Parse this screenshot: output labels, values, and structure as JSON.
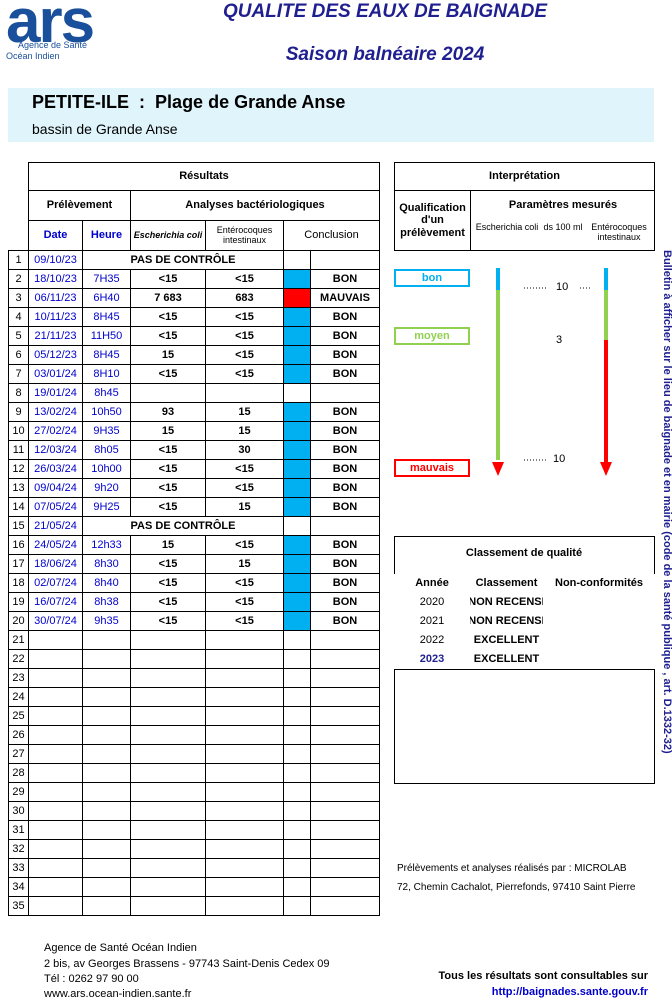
{
  "header": {
    "logo": "ars",
    "agency_line1": "Agence de Santé",
    "agency_line2": "Océan Indien",
    "title": "QUALITE DES EAUX DE BAIGNADE",
    "subtitle": "Saison balnéaire 2024"
  },
  "site": {
    "commune": "PETITE-ILE",
    "separator": ":",
    "beach": "Plage de Grande Anse",
    "basin": "bassin de Grande Anse"
  },
  "results": {
    "title": "Résultats",
    "group_sampling": "Prélèvement",
    "group_analysis": "Analyses bactériologiques",
    "columns": [
      "Date",
      "Heure",
      "Escherichia coli",
      "Entérocoques intestinaux",
      "Conclusion"
    ],
    "rows": [
      {
        "no": "1",
        "date": "09/10/23",
        "note": "PAS DE CONTRÔLE"
      },
      {
        "no": "2",
        "date": "18/10/23",
        "time": "7H35",
        "ecoli": "<15",
        "entero": "<15",
        "color": "#00b0f0",
        "conclusion": "BON"
      },
      {
        "no": "3",
        "date": "06/11/23",
        "time": "6H40",
        "ecoli": "7 683",
        "entero": "683",
        "color": "#ff0000",
        "conclusion": "MAUVAIS"
      },
      {
        "no": "4",
        "date": "10/11/23",
        "time": "8H45",
        "ecoli": "<15",
        "entero": "<15",
        "color": "#00b0f0",
        "conclusion": "BON"
      },
      {
        "no": "5",
        "date": "21/11/23",
        "time": "11H50",
        "ecoli": "<15",
        "entero": "<15",
        "color": "#00b0f0",
        "conclusion": "BON"
      },
      {
        "no": "6",
        "date": "05/12/23",
        "time": "8H45",
        "ecoli": "15",
        "entero": "<15",
        "color": "#00b0f0",
        "conclusion": "BON"
      },
      {
        "no": "7",
        "date": "03/01/24",
        "time": "8H10",
        "ecoli": "<15",
        "entero": "<15",
        "color": "#00b0f0",
        "conclusion": "BON"
      },
      {
        "no": "8",
        "date": "19/01/24",
        "time": "8h45"
      },
      {
        "no": "9",
        "date": "13/02/24",
        "time": "10h50",
        "ecoli": "93",
        "entero": "15",
        "color": "#00b0f0",
        "conclusion": "BON"
      },
      {
        "no": "10",
        "date": "27/02/24",
        "time": "9H35",
        "ecoli": "15",
        "entero": "15",
        "color": "#00b0f0",
        "conclusion": "BON"
      },
      {
        "no": "11",
        "date": "12/03/24",
        "time": "8h05",
        "ecoli": "<15",
        "entero": "30",
        "color": "#00b0f0",
        "conclusion": "BON"
      },
      {
        "no": "12",
        "date": "26/03/24",
        "time": "10h00",
        "ecoli": "<15",
        "entero": "<15",
        "color": "#00b0f0",
        "conclusion": "BON"
      },
      {
        "no": "13",
        "date": "09/04/24",
        "time": "9h20",
        "ecoli": "<15",
        "entero": "<15",
        "color": "#00b0f0",
        "conclusion": "BON"
      },
      {
        "no": "14",
        "date": "07/05/24",
        "time": "9H25",
        "ecoli": "<15",
        "entero": "15",
        "color": "#00b0f0",
        "conclusion": "BON"
      },
      {
        "no": "15",
        "date": "21/05/24",
        "note": "PAS DE CONTRÔLE"
      },
      {
        "no": "16",
        "date": "24/05/24",
        "time": "12h33",
        "ecoli": "15",
        "entero": "<15",
        "color": "#00b0f0",
        "conclusion": "BON"
      },
      {
        "no": "17",
        "date": "18/06/24",
        "time": "8h30",
        "ecoli": "<15",
        "entero": "15",
        "color": "#00b0f0",
        "conclusion": "BON"
      },
      {
        "no": "18",
        "date": "02/07/24",
        "time": "8h40",
        "ecoli": "<15",
        "entero": "<15",
        "color": "#00b0f0",
        "conclusion": "BON"
      },
      {
        "no": "19",
        "date": "16/07/24",
        "time": "8h38",
        "ecoli": "<15",
        "entero": "<15",
        "color": "#00b0f0",
        "conclusion": "BON"
      },
      {
        "no": "20",
        "date": "30/07/24",
        "time": "9h35",
        "ecoli": "<15",
        "entero": "<15",
        "color": "#00b0f0",
        "conclusion": "BON"
      },
      {
        "no": "21"
      },
      {
        "no": "22"
      },
      {
        "no": "23"
      },
      {
        "no": "24"
      },
      {
        "no": "25"
      },
      {
        "no": "26"
      },
      {
        "no": "27"
      },
      {
        "no": "28"
      },
      {
        "no": "29"
      },
      {
        "no": "30"
      },
      {
        "no": "31"
      },
      {
        "no": "32"
      },
      {
        "no": "33"
      },
      {
        "no": "34"
      },
      {
        "no": "35"
      }
    ]
  },
  "interpretation": {
    "title": "Interprétation",
    "qualification": "Qualification d'un prélèvement",
    "parameters": "Paramètres mesurés",
    "param_ecoli": "Escherichia coli",
    "param_unit": "ds 100 ml",
    "param_entero": "Entérocoques intestinaux",
    "levels": [
      {
        "label": "bon",
        "color": "#00b0f0"
      },
      {
        "label": "moyen",
        "color": "#92d050"
      },
      {
        "label": "mauvais",
        "color": "#ff0000"
      }
    ],
    "thresholds": [
      "10",
      "3",
      "10"
    ]
  },
  "classification": {
    "title": "Classement de qualité",
    "columns": [
      "Année",
      "Classement",
      "Non-conformités"
    ],
    "rows": [
      {
        "year": "2020",
        "class": "NON RECENSI"
      },
      {
        "year": "2021",
        "class": "NON RECENSI"
      },
      {
        "year": "2022",
        "class": "EXCELLENT"
      },
      {
        "year": "2023",
        "class": "EXCELLENT"
      }
    ]
  },
  "laboratory": {
    "line1": "Prélèvements et analyses réalisés par : MICROLAB",
    "line2": "72, Chemin Cachalot, Pierrefonds, 97410 Saint Pierre"
  },
  "notice": "Bulletin à afficher sur le lieu de baignade et en mairie (code de la santé publique , art. D.1332-32)",
  "footer": {
    "agency": "Agence de Santé Océan Indien",
    "address": "2 bis, av Georges Brassens - 97743 Saint-Denis Cedex 09",
    "phone": "Tél : 0262 97 90 00",
    "website": "www.ars.ocean-indien.sante.fr",
    "results_note": "Tous les résultats sont consultables sur",
    "results_url": "http://baignades.sante.gouv.fr"
  }
}
